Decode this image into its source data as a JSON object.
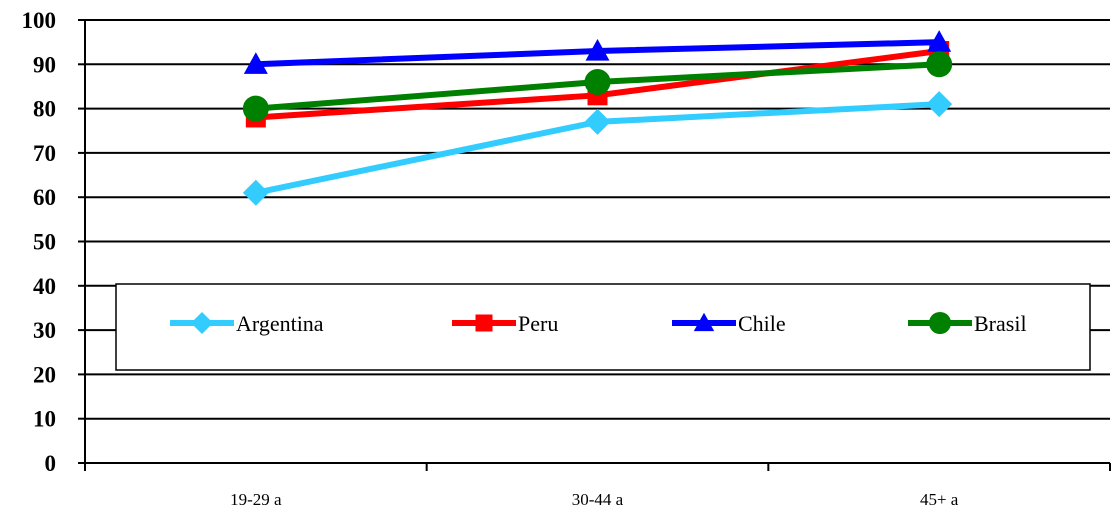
{
  "chart_data": {
    "type": "line",
    "categories": [
      "19-29 a",
      "30-44 a",
      "45+ a"
    ],
    "series": [
      {
        "name": "Argentina",
        "values": [
          61,
          77,
          81
        ],
        "color": "#33CCFF",
        "marker": "diamond"
      },
      {
        "name": "Peru",
        "values": [
          78,
          83,
          93
        ],
        "color": "#FF0000",
        "marker": "square"
      },
      {
        "name": "Chile",
        "values": [
          90,
          93,
          95
        ],
        "color": "#0000FF",
        "marker": "triangle"
      },
      {
        "name": "Brasil",
        "values": [
          80,
          86,
          90
        ],
        "color": "#008000",
        "marker": "circle"
      }
    ],
    "ylim": [
      0,
      100
    ],
    "yticks": [
      0,
      10,
      20,
      30,
      40,
      50,
      60,
      70,
      80,
      90,
      100
    ],
    "grid": true,
    "legend": "center"
  }
}
